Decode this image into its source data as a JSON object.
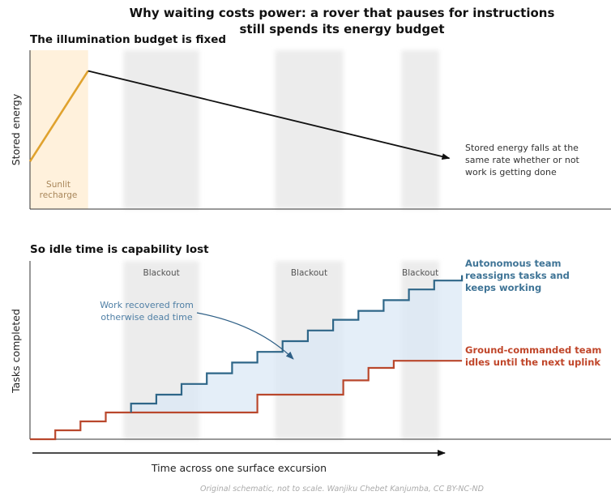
{
  "title_lines": [
    "Why waiting costs power: a rover that pauses for instructions",
    "still spends its energy budget"
  ],
  "credit": "Original schematic, not to scale. Wanjiku Chebet Kanjumba, CC BY-NC-ND",
  "xlabel": "Time across one surface excursion",
  "colors": {
    "autonomous": "#2e6688",
    "ground": "#b9472c",
    "energy_ramp": "#e0a22e",
    "energy_line": "#111111",
    "sunlit": "#fff1dc",
    "blackout": "#ececec",
    "gain_fill": "#dbe8f5"
  },
  "chart_data": [
    {
      "type": "line",
      "title": "The illumination budget is fixed",
      "ylabel": "Stored energy",
      "xlim": [
        0,
        23
      ],
      "ylim": [
        0,
        10
      ],
      "sunlit": {
        "x": [
          0,
          2.3
        ],
        "label_lines": [
          "Sunlit",
          "recharge"
        ]
      },
      "blackouts": [
        [
          3.7,
          6.7
        ],
        [
          9.7,
          12.4
        ],
        [
          14.7,
          16.2
        ]
      ],
      "series": [
        {
          "points": [
            [
              0,
              3.0
            ],
            [
              2.3,
              8.7
            ]
          ]
        },
        {
          "points": [
            [
              2.3,
              8.7
            ],
            [
              16.6,
              3.2
            ]
          ]
        }
      ],
      "annotation": {
        "lines": [
          "Stored energy falls at the",
          "same rate whether or not",
          "work is getting done"
        ],
        "x": 17.3,
        "y": 3.2
      }
    },
    {
      "type": "line",
      "title": "So idle time is capability lost",
      "ylabel": "Tasks completed",
      "xlim": [
        0,
        23
      ],
      "ylim": [
        0,
        10
      ],
      "blackouts": [
        [
          3.7,
          6.7
        ],
        [
          9.7,
          12.4
        ],
        [
          14.7,
          16.2
        ]
      ],
      "blackout_label": "Blackout",
      "series": [
        {
          "name": "Ground-commanded team idles until the next uplink",
          "legend_lines": [
            "Ground-commanded team",
            "idles until the next uplink"
          ],
          "x": [
            0,
            1,
            1,
            2,
            2,
            3,
            3,
            9,
            9,
            12.4,
            12.4,
            13.4,
            13.4,
            14.4,
            14.4,
            17.1
          ],
          "y": [
            0,
            0,
            0.5,
            0.5,
            1,
            1,
            1.5,
            1.5,
            2.5,
            2.5,
            3.3,
            3.3,
            4,
            4,
            4.4,
            4.4
          ]
        },
        {
          "name": "Autonomous team reassigns tasks and keeps working",
          "legend_lines": [
            "Autonomous team",
            "reassigns tasks and",
            "keeps working"
          ],
          "x": [
            4,
            4,
            5,
            5,
            6,
            6,
            7,
            7,
            8,
            8,
            9,
            9,
            10,
            10,
            11,
            11,
            12,
            12,
            13,
            13,
            14,
            14,
            15,
            15,
            16,
            16,
            17.1,
            17.1
          ],
          "y": [
            1.5,
            2,
            2,
            2.5,
            2.5,
            3.1,
            3.1,
            3.7,
            3.7,
            4.3,
            4.3,
            4.9,
            4.9,
            5.5,
            5.5,
            6.1,
            6.1,
            6.7,
            6.7,
            7.2,
            7.2,
            7.8,
            7.8,
            8.4,
            8.4,
            8.9,
            8.9,
            9.2
          ]
        }
      ],
      "annotation": {
        "lines": [
          "Work recovered from",
          "otherwise dead time"
        ]
      }
    }
  ]
}
